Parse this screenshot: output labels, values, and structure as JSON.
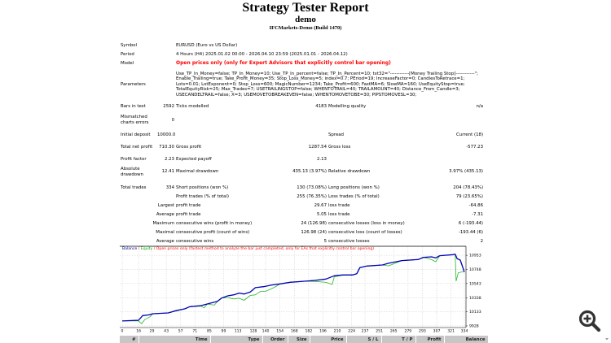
{
  "header": {
    "title": "Strategy Tester Report",
    "subtitle": "demo",
    "build": "IFCMarkets-Demo (Build 1470)"
  },
  "info": {
    "symbol_label": "Symbol",
    "symbol": "EURUSD (Euro vs US Dollar)",
    "period_label": "Period",
    "period": "4 Hours (H4) 2025.01.02 00:00 - 2026.04.10 23:59 (2025.01.01 - 2026.04.12)",
    "model_label": "Model",
    "model": "Open prices only (only for Expert Advisors that explicitly control bar opening)",
    "parameters_label": "Parameters",
    "parameters": "Use_TP_In_Money=false; TP_In_Money=10; Use_TP_In_percent=false; TP_In_Percent=10; txt32=\"------------[Money Trailing Stop]------------\"; Enable_Trailing=true; Take_Profit_Money=35; Stop_Loss_Money=5; index=0.7; PEriod=19; IncreaseFactor=0; CandlesToRetrace=1; Lots=0.01; LotExponent=0; Stop_Loss=600; MagicNumber=1234; Take_Profit=600; FastMA=6; SlowMA=160; UseEquityStop=true; TotalEquityRisk=25; Max_Trades=7; USETRAILINGSTOP=false; WHENTOTRAIL=40; TRAILAMOUNT=40; Distance_From_Candle=3; USECANDELTRAIL=false; X=3; USEMOVETOBREAKEVEN=false; WHENTOMOVETOBE=30; PIPSTOMOVESL=30;"
  },
  "stats": {
    "bars_label": "Bars in test",
    "bars": "2592",
    "ticks_label": "Ticks modelled",
    "ticks": "4183",
    "quality_label": "Modelling quality",
    "quality": "n/a",
    "mismatch_label": "Mismatched charts errors",
    "mismatch": "0",
    "deposit_label": "Initial deposit",
    "deposit": "10000.00",
    "spread_label": "Spread",
    "spread": "Current (18)",
    "net_label": "Total net profit",
    "net": "710.30",
    "gross_profit_label": "Gross profit",
    "gross_profit": "1287.54",
    "gross_loss_label": "Gross loss",
    "gross_loss": "-577.23",
    "pf_label": "Profit factor",
    "pf": "2.23",
    "payoff_label": "Expected payoff",
    "payoff": "2.13",
    "abs_dd_label": "Absolute drawdown",
    "abs_dd": "12.41",
    "max_dd_label": "Maximal drawdown",
    "max_dd": "435.13 (3.97%)",
    "rel_dd_label": "Relative drawdown",
    "rel_dd": "3.97% (435.13)",
    "trades_label": "Total trades",
    "trades": "334",
    "short_label": "Short positions (won %)",
    "short": "130 (73.08%)",
    "long_label": "Long positions (won %)",
    "long": "204 (78.43%)",
    "profit_trades_label": "Profit trades (% of total)",
    "profit_trades": "255 (76.35%)",
    "loss_trades_label": "Loss trades (% of total)",
    "loss_trades": "79 (23.65%)",
    "largest_label": "Largest",
    "largest_profit_label": "profit trade",
    "largest_profit": "29.67",
    "largest_loss_label": "loss trade",
    "largest_loss": "-64.86",
    "average_label": "Average",
    "avg_profit_label": "profit trade",
    "avg_profit": "5.05",
    "avg_loss_label": "loss trade",
    "avg_loss": "-7.31",
    "maximum_label": "Maximum",
    "max_wins_label": "consecutive wins (profit in money)",
    "max_wins": "24 (126.98)",
    "max_losses_label": "consecutive losses (loss in money)",
    "max_losses": "6 (-193.44)",
    "maximal_label": "Maximal",
    "maximal_profit_label": "consecutive profit (count of wins)",
    "maximal_profit": "126.98 (24)",
    "maximal_loss_label": "consecutive loss (count of losses)",
    "maximal_loss": "-193.44 (6)",
    "average2_label": "Average",
    "avg_wins_label": "consecutive wins",
    "avg_wins": "5",
    "avg_losses_label": "consecutive losses",
    "avg_losses": "2"
  },
  "chart_data": {
    "type": "line",
    "legend": {
      "balance": "Balance",
      "sep1": " / ",
      "equity": "Equity",
      "sep2": " / ",
      "model": "Open prices only (fastest method to analyze the bar just completed, only for EAs that explicitly control bar opening)"
    },
    "colors": {
      "balance": "#0000b4",
      "equity": "#22bb22",
      "model": "#ff0000"
    },
    "xlim": [
      0,
      334
    ],
    "ylim": [
      9928,
      11084
    ],
    "xticks": [
      0,
      16,
      29,
      43,
      57,
      71,
      85,
      99,
      113,
      128,
      140,
      154,
      168,
      182,
      196,
      210,
      224,
      237,
      251,
      265,
      279,
      293,
      307,
      321,
      334
    ],
    "yticks": [
      9928,
      10133,
      10338,
      10543,
      10748,
      10953
    ],
    "grid": true,
    "series": [
      {
        "name": "Balance",
        "points": [
          [
            0,
            10000
          ],
          [
            16,
            10010
          ],
          [
            20,
            10078
          ],
          [
            26,
            10089
          ],
          [
            30,
            10105
          ],
          [
            45,
            10117
          ],
          [
            53,
            10152
          ],
          [
            61,
            10176
          ],
          [
            66,
            10207
          ],
          [
            77,
            10223
          ],
          [
            83,
            10247
          ],
          [
            93,
            10286
          ],
          [
            97,
            10333
          ],
          [
            103,
            10365
          ],
          [
            109,
            10380
          ],
          [
            114,
            10404
          ],
          [
            119,
            10392
          ],
          [
            125,
            10420
          ],
          [
            130,
            10483
          ],
          [
            138,
            10498
          ],
          [
            146,
            10522
          ],
          [
            154,
            10538
          ],
          [
            164,
            10562
          ],
          [
            178,
            10577
          ],
          [
            188,
            10589
          ],
          [
            199,
            10609
          ],
          [
            207,
            10656
          ],
          [
            215,
            10668
          ],
          [
            225,
            10668
          ],
          [
            229,
            10687
          ],
          [
            232,
            10774
          ],
          [
            239,
            10797
          ],
          [
            254,
            10813
          ],
          [
            260,
            10837
          ],
          [
            273,
            10876
          ],
          [
            289,
            10892
          ],
          [
            294,
            10923
          ],
          [
            302,
            10931
          ],
          [
            306,
            10915
          ],
          [
            310,
            10947
          ],
          [
            323,
            10962
          ],
          [
            325,
            10970
          ],
          [
            327,
            10903
          ],
          [
            330,
            10884
          ],
          [
            334,
            10710
          ]
        ]
      },
      {
        "name": "Equity",
        "points": [
          [
            0,
            10000
          ],
          [
            16,
            10000
          ],
          [
            19,
            9960
          ],
          [
            22,
            10020
          ],
          [
            27,
            10060
          ],
          [
            30,
            10105
          ],
          [
            45,
            10117
          ],
          [
            53,
            10145
          ],
          [
            61,
            10176
          ],
          [
            66,
            10207
          ],
          [
            77,
            10215
          ],
          [
            80,
            10190
          ],
          [
            83,
            10247
          ],
          [
            90,
            10230
          ],
          [
            93,
            10286
          ],
          [
            97,
            10333
          ],
          [
            103,
            10340
          ],
          [
            109,
            10320
          ],
          [
            114,
            10330
          ],
          [
            119,
            10300
          ],
          [
            125,
            10370
          ],
          [
            130,
            10380
          ],
          [
            135,
            10430
          ],
          [
            140,
            10430
          ],
          [
            146,
            10470
          ],
          [
            150,
            10500
          ],
          [
            154,
            10538
          ],
          [
            164,
            10562
          ],
          [
            178,
            10577
          ],
          [
            188,
            10575
          ],
          [
            199,
            10560
          ],
          [
            205,
            10530
          ],
          [
            207,
            10640
          ],
          [
            215,
            10668
          ],
          [
            225,
            10668
          ],
          [
            229,
            10687
          ],
          [
            232,
            10770
          ],
          [
            239,
            10797
          ],
          [
            254,
            10813
          ],
          [
            260,
            10800
          ],
          [
            273,
            10876
          ],
          [
            289,
            10892
          ],
          [
            294,
            10923
          ],
          [
            302,
            10890
          ],
          [
            306,
            10860
          ],
          [
            310,
            10947
          ],
          [
            323,
            10962
          ],
          [
            325,
            10970
          ],
          [
            326,
            10580
          ],
          [
            328,
            10700
          ],
          [
            334,
            10720
          ]
        ]
      }
    ]
  },
  "trades_table": {
    "columns": [
      "#",
      "Time",
      "Type",
      "Order",
      "Size",
      "Price",
      "S / L",
      "T / P",
      "Profit",
      "Balance"
    ]
  },
  "icons": {
    "zoom": "zoom-in-icon",
    "scroll": "scroll-down-icon"
  }
}
